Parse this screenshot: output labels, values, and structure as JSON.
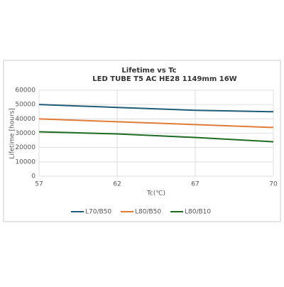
{
  "chart_data": {
    "type": "line",
    "title": "Lifetime vs Tc",
    "subtitle": "LED TUBE T5 AC HE28 1149mm 16W",
    "x_label": "Tc(℃)",
    "y_label": "Lifetime [hours]",
    "categories": [
      "57",
      "62",
      "67",
      "70"
    ],
    "series": [
      {
        "name": "L70/B50",
        "color": "#1f5c7a",
        "values": [
          50000,
          48000,
          46000,
          45000
        ]
      },
      {
        "name": "L80/B50",
        "color": "#e07b39",
        "values": [
          40000,
          38000,
          36000,
          34000
        ]
      },
      {
        "name": "L80/B10",
        "color": "#1e6b23",
        "values": [
          31000,
          29500,
          27000,
          24000
        ]
      }
    ],
    "ylim": [
      0,
      60000
    ],
    "yticks": [
      0,
      10000,
      20000,
      30000,
      40000,
      50000,
      60000
    ],
    "grid": true,
    "legend": "bottom"
  }
}
